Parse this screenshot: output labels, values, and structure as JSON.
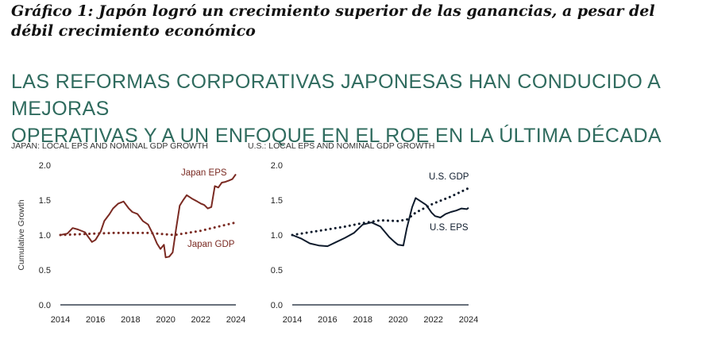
{
  "caption": "Gráfico 1: Japón logró un crecimiento superior de las ganancias, a pesar del débil crecimiento económico",
  "headline_line1": "LAS REFORMAS CORPORATIVAS JAPONESAS HAN CONDUCIDO A MEJORAS",
  "headline_line2": "OPERATIVAS Y A UN ENFOQUE EN EL ROE EN LA ÚLTIMA DÉCADA",
  "colors": {
    "japan_eps": "#7a2a22",
    "japan_gdp": "#7a2a22",
    "us_eps": "#0e1b2c",
    "us_gdp": "#0e1b2c",
    "headline": "#2f6b5e"
  },
  "chart_data": [
    {
      "type": "line",
      "title": "JAPAN: LOCAL EPS AND NOMINAL GDP GROWTH",
      "xlabel": "",
      "ylabel": "Cumulative Growth",
      "xlim": [
        2014,
        2024
      ],
      "ylim": [
        0,
        2.0
      ],
      "x_ticks": [
        2014,
        2016,
        2018,
        2020,
        2022,
        2024
      ],
      "y_ticks": [
        0.0,
        0.5,
        1.0,
        1.5,
        2.0
      ],
      "x_tick_labels": [
        "2014",
        "2016",
        "2018",
        "2020",
        "2022",
        "2024"
      ],
      "y_tick_labels": [
        "0.0",
        "0.5",
        "1.0",
        "1.5",
        "2.0"
      ],
      "grid": false,
      "series": [
        {
          "name": "Japan EPS",
          "style": "solid",
          "x": [
            2014,
            2014.4,
            2014.7,
            2015.0,
            2015.4,
            2015.8,
            2016.0,
            2016.3,
            2016.5,
            2016.8,
            2017.0,
            2017.3,
            2017.6,
            2017.9,
            2018.1,
            2018.4,
            2018.7,
            2019.0,
            2019.3,
            2019.5,
            2019.7,
            2019.9,
            2020.0,
            2020.2,
            2020.4,
            2020.6,
            2020.8,
            2021.0,
            2021.2,
            2021.5,
            2021.8,
            2022.0,
            2022.2,
            2022.4,
            2022.6,
            2022.8,
            2023.0,
            2023.2,
            2023.4,
            2023.6,
            2023.8,
            2024.0
          ],
          "values": [
            1.0,
            1.02,
            1.1,
            1.08,
            1.04,
            0.9,
            0.93,
            1.05,
            1.2,
            1.3,
            1.38,
            1.45,
            1.48,
            1.38,
            1.33,
            1.3,
            1.2,
            1.15,
            1.0,
            0.88,
            0.8,
            0.86,
            0.68,
            0.69,
            0.75,
            1.1,
            1.42,
            1.5,
            1.57,
            1.52,
            1.48,
            1.45,
            1.43,
            1.38,
            1.4,
            1.7,
            1.68,
            1.75,
            1.76,
            1.78,
            1.8,
            1.87
          ]
        },
        {
          "name": "Japan GDP",
          "style": "dotted",
          "x": [
            2014,
            2015,
            2016,
            2017,
            2018,
            2019,
            2020,
            2020.5,
            2021,
            2022,
            2023,
            2024
          ],
          "values": [
            1.0,
            1.01,
            1.02,
            1.03,
            1.03,
            1.03,
            1.01,
            1.0,
            1.02,
            1.06,
            1.12,
            1.18
          ]
        }
      ],
      "legend": "inline labels"
    },
    {
      "type": "line",
      "title": "U.S.: LOCAL EPS AND NOMINAL GDP GROWTH",
      "xlabel": "",
      "ylabel": "",
      "xlim": [
        2014,
        2024
      ],
      "ylim": [
        0,
        2.0
      ],
      "x_ticks": [
        2014,
        2016,
        2018,
        2020,
        2022,
        2024
      ],
      "y_ticks": [
        0.0,
        0.5,
        1.0,
        1.5,
        2.0
      ],
      "x_tick_labels": [
        "2014",
        "2016",
        "2018",
        "2020",
        "2022",
        "2024"
      ],
      "y_tick_labels": [
        "0.0",
        "0.5",
        "1.0",
        "1.5",
        "2.0"
      ],
      "grid": false,
      "series": [
        {
          "name": "U.S. GDP",
          "style": "dotted",
          "x": [
            2014,
            2015,
            2016,
            2017,
            2018,
            2019,
            2020,
            2020.5,
            2021,
            2022,
            2023,
            2024
          ],
          "values": [
            1.0,
            1.04,
            1.08,
            1.12,
            1.17,
            1.21,
            1.2,
            1.22,
            1.32,
            1.45,
            1.55,
            1.67
          ]
        },
        {
          "name": "U.S. EPS",
          "style": "solid",
          "x": [
            2014,
            2014.5,
            2015.0,
            2015.5,
            2016.0,
            2016.5,
            2017.0,
            2017.5,
            2018.0,
            2018.5,
            2019.0,
            2019.5,
            2019.8,
            2020.0,
            2020.3,
            2020.5,
            2020.8,
            2021.0,
            2021.3,
            2021.6,
            2021.9,
            2022.1,
            2022.4,
            2022.7,
            2023.0,
            2023.3,
            2023.6,
            2023.9,
            2024.0
          ],
          "values": [
            1.0,
            0.95,
            0.88,
            0.85,
            0.84,
            0.9,
            0.96,
            1.03,
            1.15,
            1.18,
            1.12,
            0.97,
            0.9,
            0.86,
            0.85,
            1.1,
            1.4,
            1.53,
            1.48,
            1.43,
            1.32,
            1.27,
            1.25,
            1.3,
            1.33,
            1.35,
            1.38,
            1.37,
            1.39
          ]
        }
      ],
      "legend": "inline labels"
    }
  ]
}
